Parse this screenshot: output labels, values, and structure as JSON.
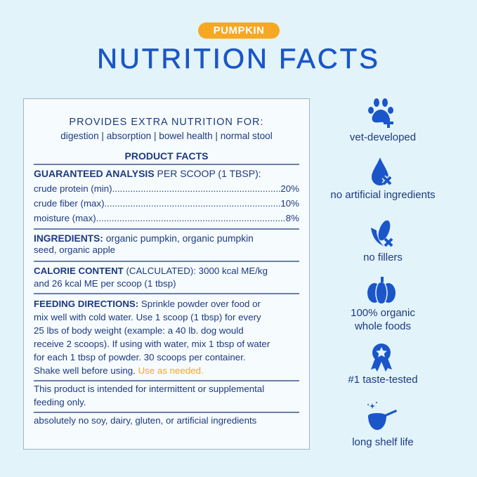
{
  "header": {
    "badge": "PUMPKIN",
    "title": "NUTRITION FACTS"
  },
  "panel": {
    "provides_title": "PROVIDES EXTRA NUTRITION FOR:",
    "provides_list": "digestion | absorption | bowel health | normal stool",
    "product_facts": "PRODUCT FACTS",
    "analysis_label": "GUARANTEED ANALYSIS",
    "analysis_suffix": " PER SCOOP (1 TBSP):",
    "analysis": [
      {
        "name": "crude protein (min)",
        "value": "20%"
      },
      {
        "name": "crude fiber (max)",
        "value": "10%"
      },
      {
        "name": "moisture (max)",
        "value": "8%"
      }
    ],
    "ingredients_label": "INGREDIENTS:",
    "ingredients_line1": " organic pumpkin, organic pumpkin",
    "ingredients_line2": "seed, organic apple",
    "calorie_label": "CALORIE CONTENT",
    "calorie_line1": " (CALCULATED): 3000 kcal ME/kg",
    "calorie_line2": "and 26 kcal ME per scoop (1 tbsp)",
    "feeding_label": "FEEDING DIRECTIONS:",
    "feeding_line1": " Sprinkle powder over food or",
    "feeding_lines": [
      "mix well with cold water. Use 1 scoop (1 tbsp) for every",
      "25 lbs of body weight (example: a 40 lb. dog would",
      "receive 2 scoops). If using with water, mix 1 tbsp of water",
      "for each 1 tbsp of powder. 30 scoops per container."
    ],
    "feeding_last": "Shake well before using. ",
    "feeding_highlight": "Use as needed.",
    "note_line1": "This product is intended for intermittent or supplemental",
    "note_line2": "feeding only.",
    "free_from": "absolutely no soy, dairy, gluten, or artificial ingredients"
  },
  "features": [
    {
      "icon": "paw-plus-icon",
      "label": "vet-developed"
    },
    {
      "icon": "drop-x-icon",
      "label": "no artificial ingredients"
    },
    {
      "icon": "corn-x-icon",
      "label": "no fillers"
    },
    {
      "icon": "pumpkin-icon",
      "label": "100% organic",
      "label2": "whole foods"
    },
    {
      "icon": "award-ribbon-icon",
      "label": "#1 taste-tested"
    },
    {
      "icon": "scoop-sparkle-icon",
      "label": "long shelf life"
    }
  ],
  "colors": {
    "background": "#e2f3fa",
    "title": "#1a56c9",
    "text": "#1d3a80",
    "accent": "#f7a823"
  }
}
